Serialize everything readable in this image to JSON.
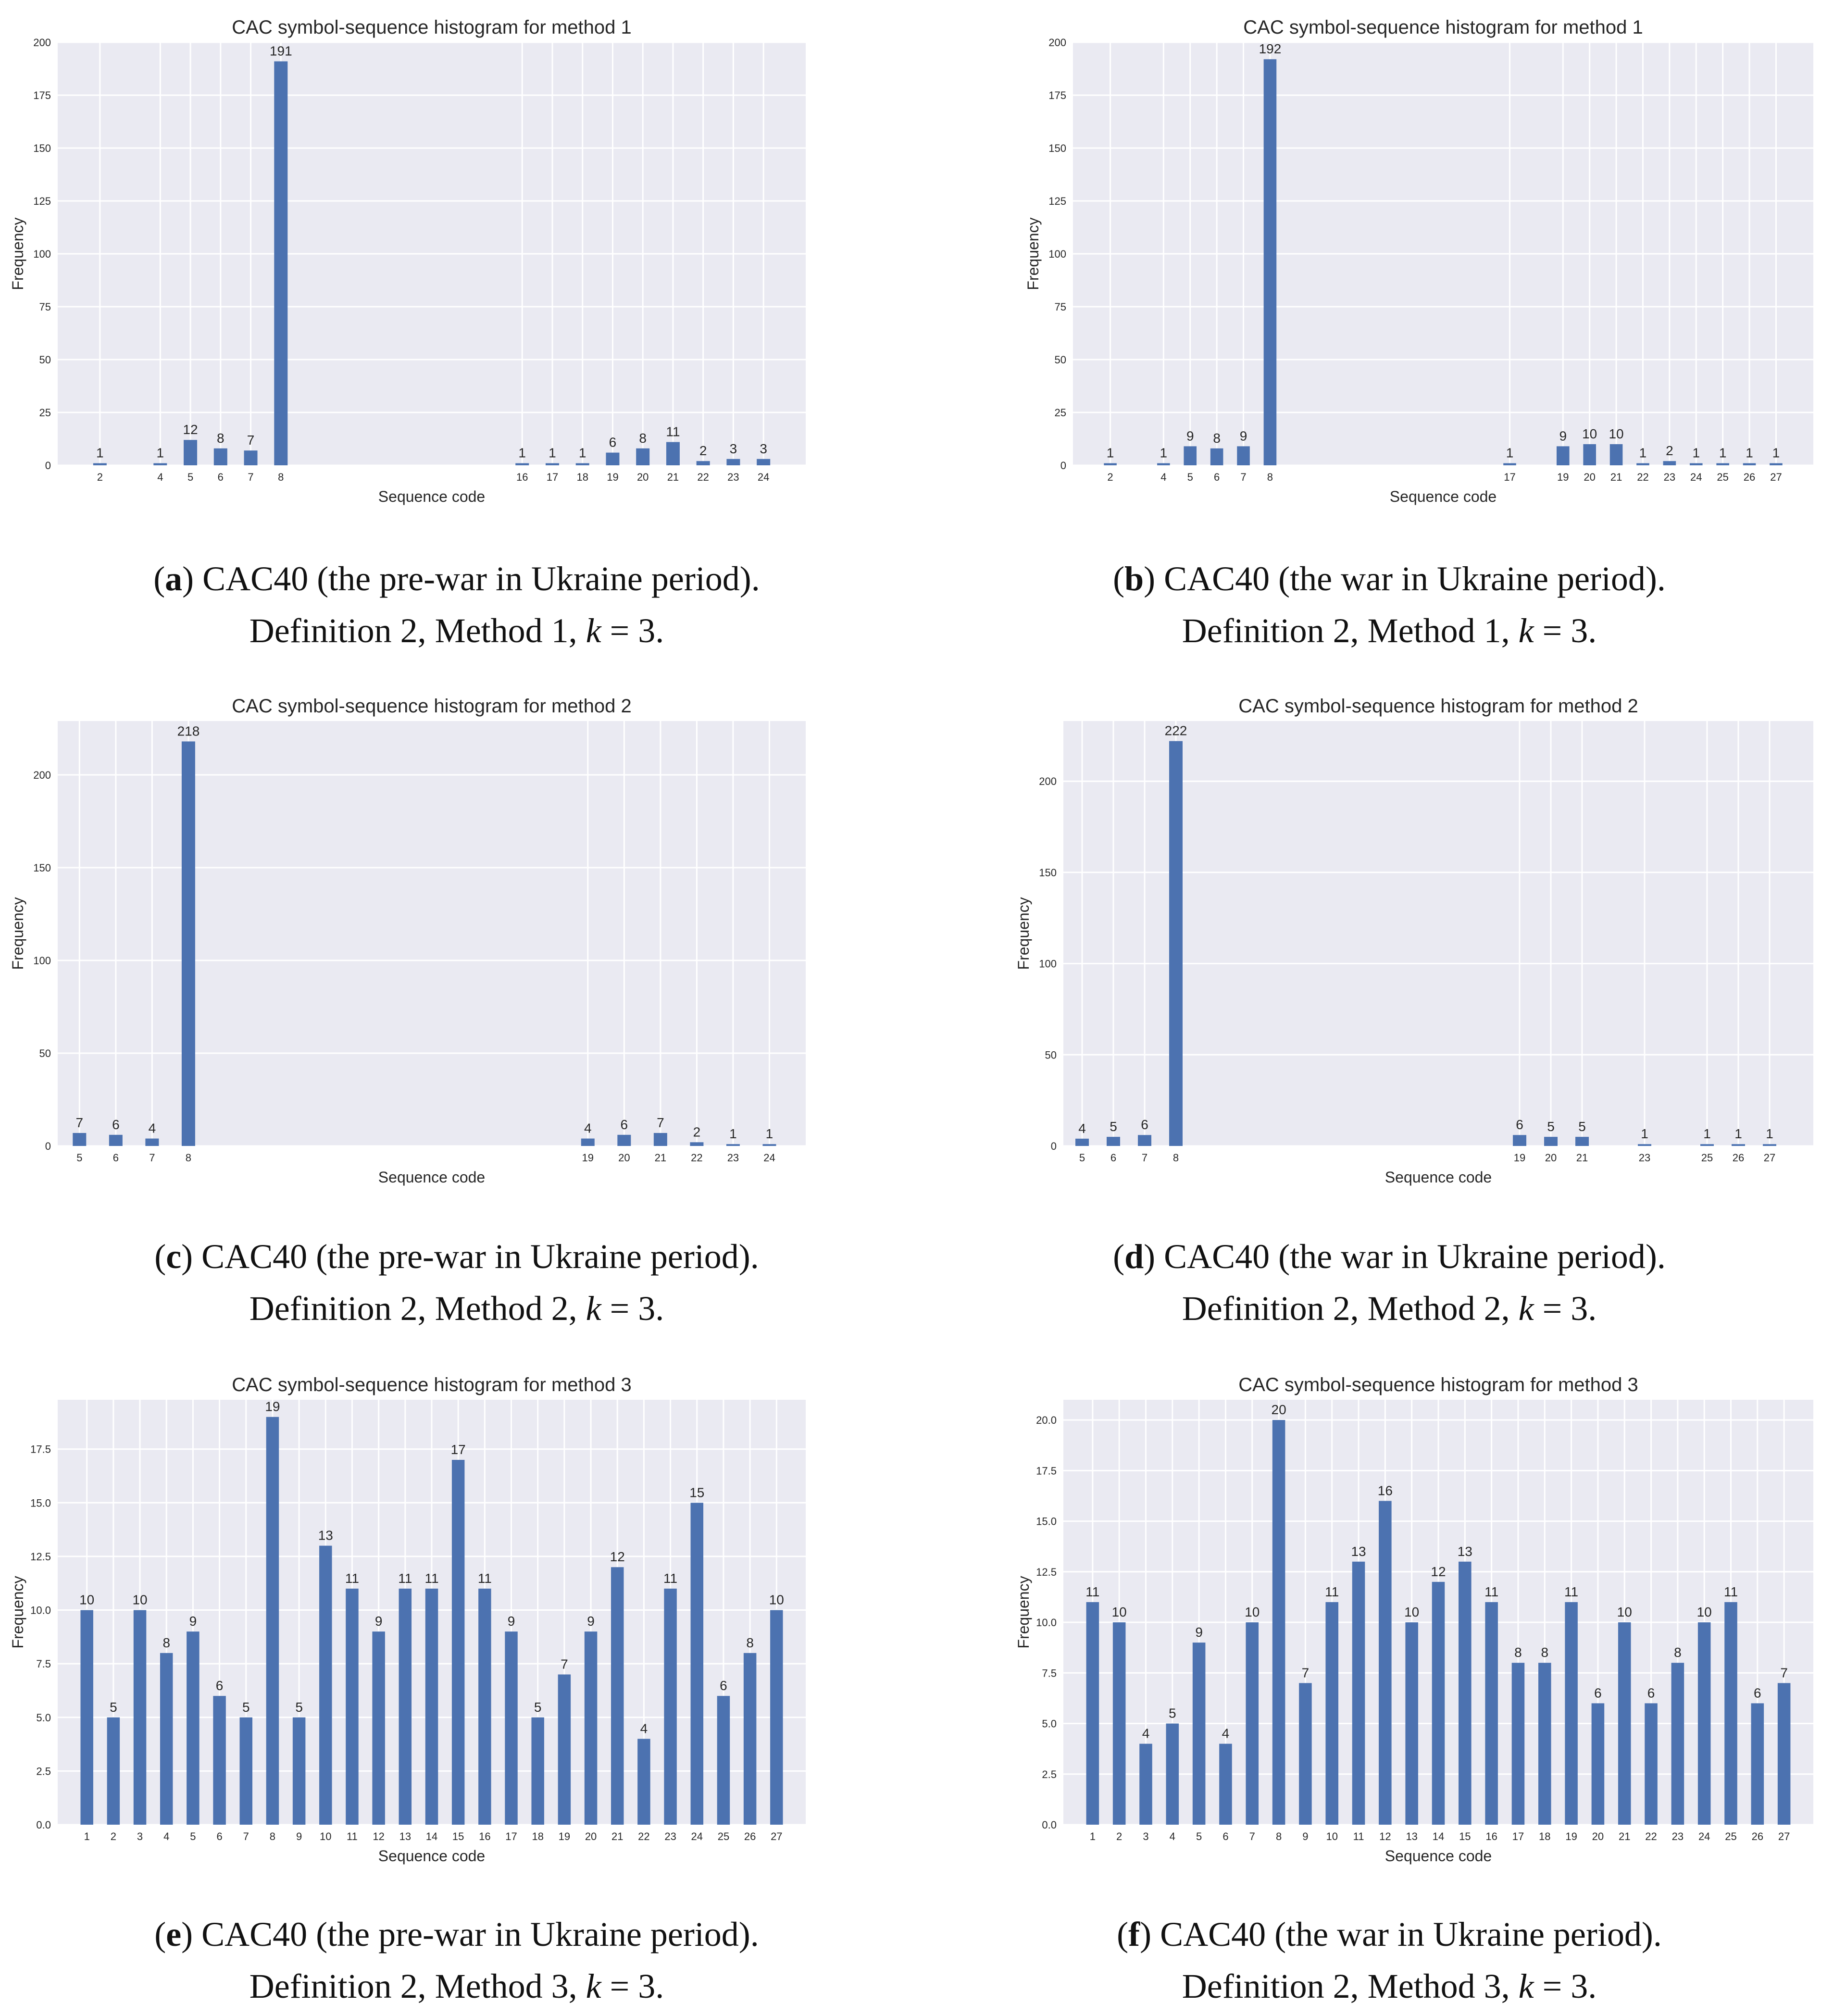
{
  "colors": {
    "plot_bg": "#eaeaf2",
    "grid": "#ffffff",
    "bar": "#4c72b0",
    "text": "#262626"
  },
  "chart_data": [
    {
      "id": "a",
      "type": "bar",
      "title": "CAC symbol-sequence histogram for method 1",
      "xlabel": "Sequence code",
      "ylabel": "Frequency",
      "ylim": [
        0,
        200
      ],
      "yticks": [
        "0",
        "25",
        "50",
        "75",
        "100",
        "125",
        "150",
        "175",
        "200"
      ],
      "xlim": [
        0.6,
        25.4
      ],
      "categories": [
        "2",
        "4",
        "5",
        "6",
        "7",
        "8",
        "16",
        "17",
        "18",
        "19",
        "20",
        "21",
        "22",
        "23",
        "24"
      ],
      "values": [
        1,
        1,
        12,
        8,
        7,
        191,
        1,
        1,
        1,
        6,
        8,
        11,
        2,
        3,
        3
      ],
      "data_labels": [
        "1",
        "1",
        "12",
        "8",
        "7",
        "191",
        "1",
        "1",
        "1",
        "6",
        "8",
        "11",
        "2",
        "3",
        "3"
      ]
    },
    {
      "id": "b",
      "type": "bar",
      "title": "CAC symbol-sequence histogram for method 1",
      "xlabel": "Sequence code",
      "ylabel": "Frequency",
      "ylim": [
        0,
        200
      ],
      "yticks": [
        "0",
        "25",
        "50",
        "75",
        "100",
        "125",
        "150",
        "175",
        "200"
      ],
      "xlim": [
        0.6,
        28.4
      ],
      "categories": [
        "2",
        "4",
        "5",
        "6",
        "7",
        "8",
        "17",
        "19",
        "20",
        "21",
        "22",
        "23",
        "24",
        "25",
        "26",
        "27"
      ],
      "values": [
        1,
        1,
        9,
        8,
        9,
        192,
        1,
        9,
        10,
        10,
        1,
        2,
        1,
        1,
        1,
        1
      ],
      "data_labels": [
        "1",
        "1",
        "9",
        "8",
        "9",
        "192",
        "1",
        "9",
        "10",
        "10",
        "1",
        "2",
        "1",
        "1",
        "1",
        "1"
      ]
    },
    {
      "id": "c",
      "type": "bar",
      "title": "CAC symbol-sequence histogram for method 2",
      "xlabel": "Sequence code",
      "ylabel": "Frequency",
      "ylim": [
        0,
        229
      ],
      "yticks": [
        "0",
        "50",
        "100",
        "150",
        "200"
      ],
      "xlim": [
        4.4,
        25.0
      ],
      "categories": [
        "5",
        "6",
        "7",
        "8",
        "19",
        "20",
        "21",
        "22",
        "23",
        "24"
      ],
      "values": [
        7,
        6,
        4,
        218,
        4,
        6,
        7,
        2,
        1,
        1
      ],
      "data_labels": [
        "7",
        "6",
        "4",
        "218",
        "4",
        "6",
        "7",
        "2",
        "1",
        "1"
      ]
    },
    {
      "id": "d",
      "type": "bar",
      "title": "CAC symbol-sequence histogram for method 2",
      "xlabel": "Sequence code",
      "ylabel": "Frequency",
      "ylim": [
        0,
        233
      ],
      "yticks": [
        "0",
        "50",
        "100",
        "150",
        "200"
      ],
      "xlim": [
        4.4,
        28.4
      ],
      "categories": [
        "5",
        "6",
        "7",
        "8",
        "19",
        "20",
        "21",
        "23",
        "25",
        "26",
        "27"
      ],
      "values": [
        4,
        5,
        6,
        222,
        6,
        5,
        5,
        1,
        1,
        1,
        1
      ],
      "data_labels": [
        "4",
        "5",
        "6",
        "222",
        "6",
        "5",
        "5",
        "1",
        "1",
        "1",
        "1"
      ]
    },
    {
      "id": "e",
      "type": "bar",
      "title": "CAC symbol-sequence histogram for method 3",
      "xlabel": "Sequence code",
      "ylabel": "Frequency",
      "ylim": [
        0,
        19.8
      ],
      "yticks": [
        "0.0",
        "2.5",
        "5.0",
        "7.5",
        "10.0",
        "12.5",
        "15.0",
        "17.5"
      ],
      "xlim": [
        -0.1,
        28.1
      ],
      "categories": [
        "1",
        "2",
        "3",
        "4",
        "5",
        "6",
        "7",
        "8",
        "9",
        "10",
        "11",
        "12",
        "13",
        "14",
        "15",
        "16",
        "17",
        "18",
        "19",
        "20",
        "21",
        "22",
        "23",
        "24",
        "25",
        "26",
        "27"
      ],
      "values": [
        10,
        5,
        10,
        8,
        9,
        6,
        5,
        19,
        5,
        13,
        11,
        9,
        11,
        11,
        17,
        11,
        9,
        5,
        7,
        9,
        12,
        4,
        11,
        15,
        6,
        8,
        10
      ],
      "data_labels": [
        "10",
        "5",
        "10",
        "8",
        "9",
        "6",
        "5",
        "19",
        "5",
        "13",
        "11",
        "9",
        "11",
        "11",
        "17",
        "11",
        "9",
        "5",
        "7",
        "9",
        "12",
        "4",
        "11",
        "15",
        "6",
        "8",
        "10"
      ]
    },
    {
      "id": "f",
      "type": "bar",
      "title": "CAC symbol-sequence histogram for method 3",
      "xlabel": "Sequence code",
      "ylabel": "Frequency",
      "ylim": [
        0,
        21
      ],
      "yticks": [
        "0.0",
        "2.5",
        "5.0",
        "7.5",
        "10.0",
        "12.5",
        "15.0",
        "17.5",
        "20.0"
      ],
      "xlim": [
        -0.1,
        28.1
      ],
      "categories": [
        "1",
        "2",
        "3",
        "4",
        "5",
        "6",
        "7",
        "8",
        "9",
        "10",
        "11",
        "12",
        "13",
        "14",
        "15",
        "16",
        "17",
        "18",
        "19",
        "20",
        "21",
        "22",
        "23",
        "24",
        "25",
        "26",
        "27"
      ],
      "values": [
        11,
        10,
        4,
        5,
        9,
        4,
        10,
        20,
        7,
        11,
        13,
        16,
        10,
        12,
        13,
        11,
        8,
        8,
        11,
        6,
        10,
        6,
        8,
        10,
        11,
        6,
        7
      ],
      "data_labels": [
        "11",
        "10",
        "4",
        "5",
        "9",
        "4",
        "10",
        "20",
        "7",
        "11",
        "13",
        "16",
        "10",
        "12",
        "13",
        "11",
        "8",
        "8",
        "11",
        "6",
        "10",
        "6",
        "8",
        "10",
        "11",
        "6",
        "7"
      ]
    }
  ],
  "captions": [
    {
      "letter": "a",
      "line1": "CAC40 (the pre-war in Ukraine period).",
      "line2_prefix": "Definition 2, Method 1,",
      "k_symbol": "k",
      "k_value": "= 3."
    },
    {
      "letter": "b",
      "line1": "CAC40 (the war in Ukraine period).",
      "line2_prefix": "Definition 2, Method 1,",
      "k_symbol": "k",
      "k_value": "= 3."
    },
    {
      "letter": "c",
      "line1": "CAC40 (the pre-war in Ukraine period).",
      "line2_prefix": "Definition 2, Method 2,",
      "k_symbol": "k",
      "k_value": "= 3."
    },
    {
      "letter": "d",
      "line1": "CAC40 (the war in Ukraine period).",
      "line2_prefix": "Definition 2, Method 2,",
      "k_symbol": "k",
      "k_value": "= 3."
    },
    {
      "letter": "e",
      "line1": "CAC40 (the pre-war in Ukraine period).",
      "line2_prefix": "Definition 2, Method 3,",
      "k_symbol": "k",
      "k_value": "= 3."
    },
    {
      "letter": "f",
      "line1": "CAC40 (the war in Ukraine period).",
      "line2_prefix": "Definition 2, Method 3,",
      "k_symbol": "k",
      "k_value": "= 3."
    }
  ]
}
